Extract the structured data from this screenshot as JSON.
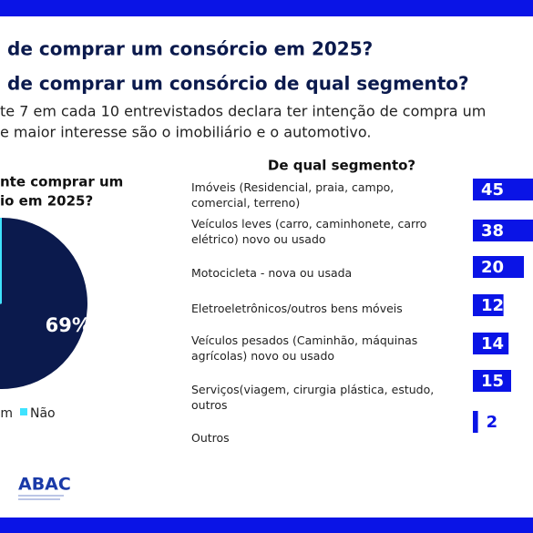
{
  "slide": {
    "headings": [
      "de comprar um consórcio em 2025?",
      "de comprar um consórcio de qual segmento?"
    ],
    "body": [
      "te 7 em cada 10 entrevistados declara ter intenção de compra um",
      "e maior interesse são o imobiliário e o automotivo."
    ],
    "logo": "ABAC"
  },
  "chart_data": [
    {
      "type": "pie",
      "title": [
        "nte comprar um",
        "io em 2025?"
      ],
      "categories": [
        "Sim",
        "Não"
      ],
      "values": [
        69,
        31
      ],
      "value_labels": [
        "69%",
        null
      ],
      "colors": [
        "#0b1a4d",
        "#3fe3ff"
      ]
    },
    {
      "type": "bar",
      "orientation": "horizontal",
      "title": "De qual segmento?",
      "categories": [
        "Imóveis (Residencial, praia, campo, comercial, terreno)",
        "Veículos leves (carro, caminhonete, carro elétrico) novo ou usado",
        "Motocicleta - nova ou usada",
        "Eletroeletrônicos/outros bens móveis",
        "Veículos pesados (Caminhão, máquinas agrícolas) novo ou usado",
        "Serviços(viagem, cirurgia plástica, estudo, outros",
        "Outros"
      ],
      "values": [
        45,
        38,
        20,
        12,
        14,
        15,
        2
      ],
      "color": "#0a14e6"
    }
  ]
}
